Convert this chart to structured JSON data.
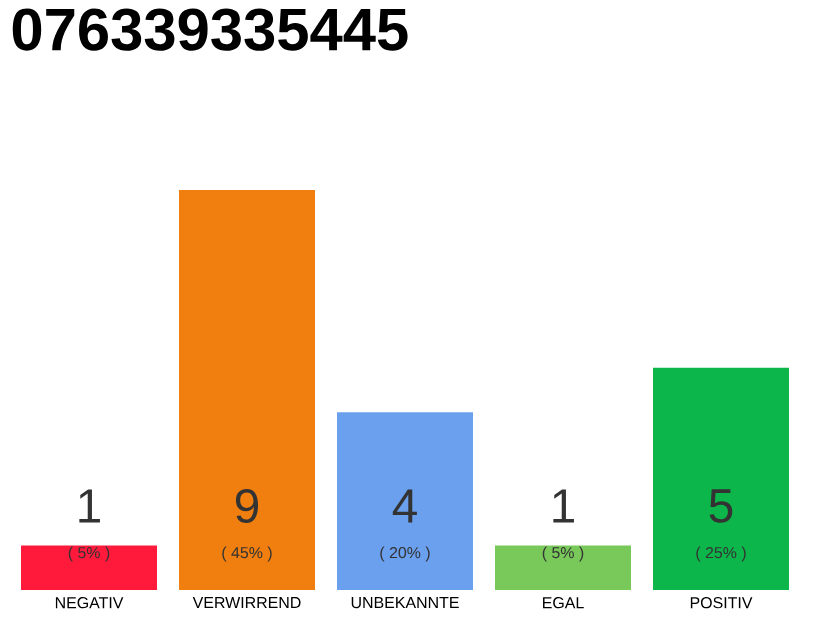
{
  "chart_data": {
    "type": "bar",
    "title": "076339335445",
    "categories": [
      "NEGATIV",
      "VERWIRREND",
      "UNBEKANNTE",
      "EGAL",
      "POSITIV"
    ],
    "values": [
      1,
      9,
      4,
      1,
      5
    ],
    "colors": [
      "#ff1a3c",
      "#f07f0f",
      "#6aa0ee",
      "#78c85a",
      "#0db64a"
    ],
    "ylim": [
      0,
      9
    ],
    "data_labels": true,
    "annotations": [
      "( 5% )",
      "( 45% )",
      "( 20% )",
      "( 5% )",
      "( 25% )"
    ]
  }
}
